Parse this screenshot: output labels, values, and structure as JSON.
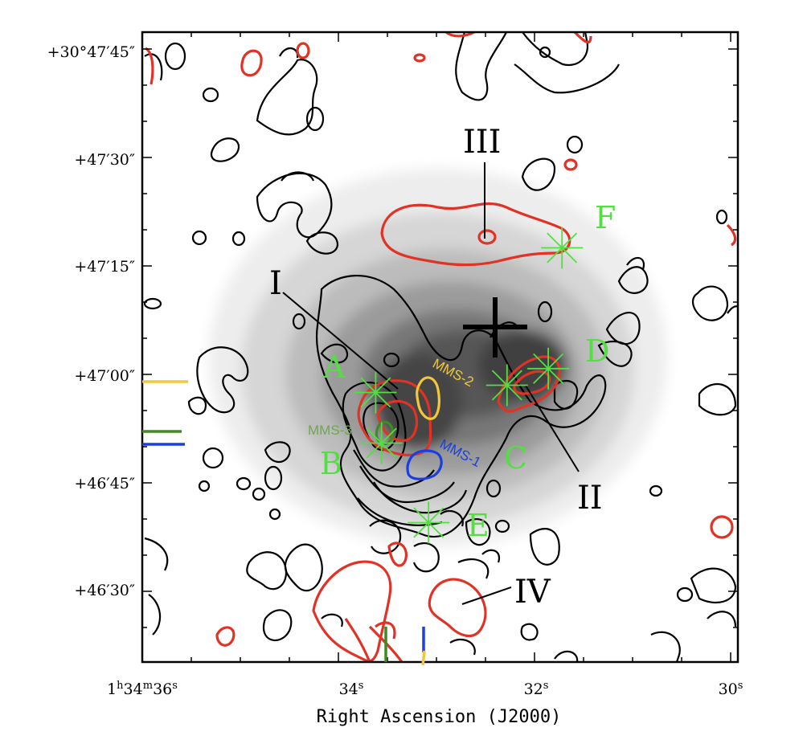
{
  "chart_data": {
    "type": "contour",
    "xlabel": "Right Ascension (J2000)",
    "ylabel": "",
    "x_ticks": [
      {
        "ra_s": 36,
        "label_h": "1",
        "label_m": "34",
        "label_s": "36"
      },
      {
        "ra_s": 34,
        "label_s": "34"
      },
      {
        "ra_s": 32,
        "label_s": "32"
      },
      {
        "ra_s": 30,
        "label_s": "30"
      }
    ],
    "y_ticks": [
      {
        "dec_arcsec": 45,
        "label": "+30°47′45″"
      },
      {
        "dec_arcsec": 30,
        "label": "+47′30″"
      },
      {
        "dec_arcsec": 15,
        "label": "+47′15″"
      },
      {
        "dec_arcsec": 0,
        "label": "+47′00″"
      },
      {
        "dec_arcsec": -15,
        "label": "+46′45″"
      },
      {
        "dec_arcsec": -30,
        "label": "+46′30″"
      }
    ],
    "xlim_ra_s": [
      36.2,
      29.8
    ],
    "ylim_dec_arcsec": [
      -40,
      49
    ],
    "green_sources": [
      {
        "label": "A",
        "ra_s": 33.62,
        "dec_arcsec": -2.5
      },
      {
        "label": "B",
        "ra_s": 33.56,
        "dec_arcsec": -9.5
      },
      {
        "label": "C",
        "ra_s": 32.28,
        "dec_arcsec": -1.5
      },
      {
        "label": "D",
        "ra_s": 31.86,
        "dec_arcsec": 0.8
      },
      {
        "label": "E",
        "ra_s": 33.08,
        "dec_arcsec": -20.5
      },
      {
        "label": "F",
        "ra_s": 31.72,
        "dec_arcsec": 17.5
      }
    ],
    "mm_sources": [
      {
        "label": "MMS-1",
        "color": "#1a3fe0"
      },
      {
        "label": "MMS-2",
        "color": "#f2c83a"
      },
      {
        "label": "MMS-3",
        "color": "#3f8a23"
      }
    ],
    "outflow_labels": [
      "I",
      "II",
      "III",
      "IV"
    ],
    "cross": {
      "ra_s": 32.58,
      "dec_arcsec": 6.5
    },
    "colors": {
      "red_contour": "#e03325",
      "black_contour": "#000000",
      "green_marker": "#55dd44",
      "mms1": "#1a3fe0",
      "mms2": "#f2c83a",
      "mms3": "#3f8a23"
    }
  }
}
